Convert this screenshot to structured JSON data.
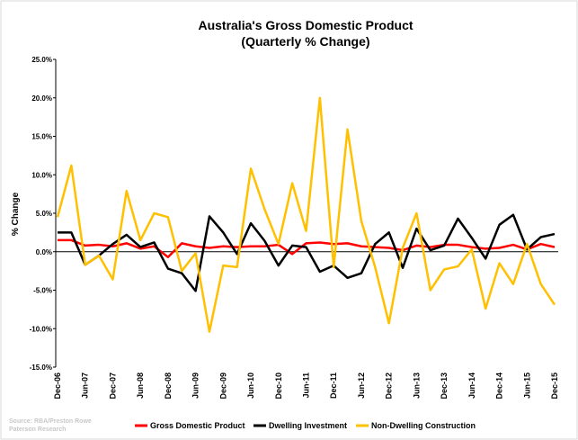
{
  "chart_data": {
    "type": "line",
    "title": "Australia's Gross Domestic Product",
    "subtitle": "(Quarterly % Change)",
    "y_label": "% Change",
    "source": "Source: RBA/Preston Rowe Paterson Research",
    "categories": [
      "Dec-06",
      null,
      "Jun-07",
      null,
      "Dec-07",
      null,
      "Jun-08",
      null,
      "Dec-08",
      null,
      "Jun-09",
      null,
      "Dec-09",
      null,
      "Jun-10",
      null,
      "Dec-10",
      null,
      "Jun-11",
      null,
      "Dec-11",
      null,
      "Jun-12",
      null,
      "Dec-12",
      null,
      "Jun-13",
      null,
      "Dec-13",
      null,
      "Jun-14",
      null,
      "Dec-14",
      null,
      "Jun-15",
      null,
      "Dec-15"
    ],
    "series": [
      {
        "name": "Gross Domestic Product",
        "color": "#ff0000",
        "values": [
          1.5,
          1.5,
          0.8,
          0.9,
          0.7,
          1.1,
          0.4,
          0.7,
          -0.7,
          1.1,
          0.7,
          0.5,
          0.7,
          0.6,
          0.7,
          0.7,
          0.9,
          -0.3,
          1.1,
          1.2,
          1.0,
          1.1,
          0.7,
          0.6,
          0.5,
          0.2,
          0.8,
          0.6,
          0.9,
          0.9,
          0.6,
          0.4,
          0.5,
          0.9,
          0.3,
          1.0,
          0.6
        ]
      },
      {
        "name": "Dwelling Investment",
        "color": "#000000",
        "values": [
          2.5,
          2.5,
          -1.7,
          -0.5,
          1.0,
          2.2,
          0.6,
          1.2,
          -2.2,
          -2.8,
          -5.1,
          4.6,
          2.5,
          -0.3,
          3.7,
          1.4,
          -1.8,
          0.8,
          0.6,
          -2.6,
          -1.8,
          -3.4,
          -2.8,
          1.0,
          2.5,
          -2.1,
          3.0,
          0.2,
          0.8,
          4.3,
          1.8,
          -0.9,
          3.5,
          4.8,
          0.3,
          1.9,
          2.3
        ]
      },
      {
        "name": "Non-Dwelling Construction",
        "color": "#ffc000",
        "values": [
          4.5,
          11.2,
          -1.7,
          -0.5,
          -3.6,
          7.9,
          1.5,
          5.0,
          4.5,
          -2.5,
          -0.2,
          -10.4,
          -1.8,
          -2.0,
          10.8,
          5.5,
          1.0,
          8.9,
          2.7,
          20.0,
          -2.0,
          15.9,
          4.0,
          -2.0,
          -9.3,
          0.5,
          5.0,
          -5.0,
          -2.3,
          -1.9,
          0.3,
          -7.4,
          -1.5,
          -4.2,
          1.0,
          -4.2,
          -6.9
        ]
      }
    ],
    "ylim": [
      -15,
      25
    ],
    "yticks": [
      {
        "value": -15,
        "label": "-15.0%"
      },
      {
        "value": -10,
        "label": "-10.0%"
      },
      {
        "value": -5,
        "label": "-5.0%"
      },
      {
        "value": 0,
        "label": "0.0%"
      },
      {
        "value": 5,
        "label": "5.0%"
      },
      {
        "value": 10,
        "label": "10.0%"
      },
      {
        "value": 15,
        "label": "15.0%"
      },
      {
        "value": 20,
        "label": "20.0%"
      },
      {
        "value": 25,
        "label": "25.0%"
      }
    ],
    "grid": false,
    "legend": "bottom"
  }
}
